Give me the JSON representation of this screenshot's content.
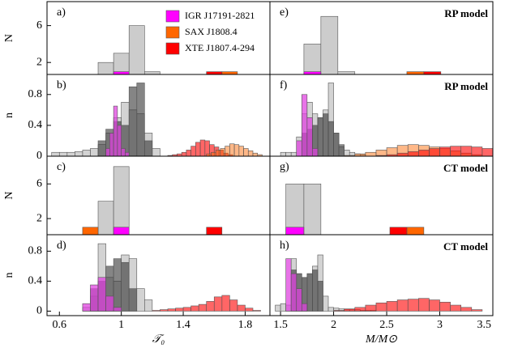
{
  "chart_data": [
    {
      "type": "histogram",
      "label": "a)",
      "ylabel": "N",
      "xlim": [
        0.52,
        1.96
      ],
      "ylim": [
        0.7,
        8.6
      ],
      "yticks": [
        2,
        6
      ],
      "series": [
        {
          "color": "#cccccc",
          "bins": [
            0.85,
            0.95,
            1.05,
            1.15,
            1.25
          ],
          "values": [
            2,
            3,
            6,
            1
          ]
        },
        {
          "name": "IGR J17191-2821",
          "color": "#ff00ff",
          "bins": [
            0.95,
            1.05
          ],
          "values": [
            1
          ]
        },
        {
          "name": "SAX J1808.4",
          "color": "#ff6600",
          "bins": [
            1.65,
            1.75
          ],
          "values": [
            1
          ]
        },
        {
          "name": "XTE J1807.4-294",
          "color": "#ff0000",
          "bins": [
            1.55,
            1.65
          ],
          "values": [
            1
          ]
        }
      ]
    },
    {
      "type": "histogram",
      "label": "b)",
      "ylabel": "n",
      "xlim": [
        0.52,
        1.96
      ],
      "ylim": [
        0,
        1.06
      ],
      "yticks": [
        0,
        0.4,
        0.8
      ],
      "series": [
        {
          "color": "#c8c8c8cc",
          "bins": [
            0.55,
            0.6,
            0.65,
            0.7,
            0.75,
            0.8,
            0.85,
            0.9,
            0.95,
            1.0,
            1.05,
            1.1,
            1.15,
            1.2,
            1.25
          ],
          "values": [
            0.05,
            0.05,
            0.05,
            0.06,
            0.08,
            0.1,
            0.15,
            0.3,
            0.5,
            0.7,
            0.6,
            0.55,
            0.3,
            0.1
          ]
        },
        {
          "color": "#33333399",
          "bins": [
            0.85,
            0.9,
            0.95,
            1.0,
            1.05,
            1.1,
            1.15,
            1.2
          ],
          "values": [
            0.2,
            0.35,
            0.45,
            0.4,
            0.9,
            0.95,
            0.2
          ]
        },
        {
          "color": "#e040e0bb",
          "bins": [
            0.9,
            0.925,
            0.95,
            0.975,
            1.0,
            1.025,
            1.05
          ],
          "values": [
            0.1,
            0.3,
            0.65,
            0.4,
            0.1,
            0.05
          ]
        },
        {
          "color": "#ff000099",
          "bins": [
            1.3,
            1.33,
            1.36,
            1.39,
            1.42,
            1.45,
            1.48,
            1.51,
            1.54,
            1.57,
            1.6,
            1.63,
            1.66,
            1.69,
            1.72
          ],
          "values": [
            0.01,
            0.02,
            0.03,
            0.05,
            0.08,
            0.13,
            0.18,
            0.21,
            0.2,
            0.15,
            0.12,
            0.08,
            0.04,
            0.02
          ]
        },
        {
          "color": "#ff660077",
          "bins": [
            1.55,
            1.58,
            1.61,
            1.64,
            1.67,
            1.7,
            1.73,
            1.76,
            1.79,
            1.82,
            1.85,
            1.88,
            1.91
          ],
          "values": [
            0.03,
            0.05,
            0.08,
            0.1,
            0.13,
            0.16,
            0.15,
            0.13,
            0.1,
            0.07,
            0.04,
            0.02
          ]
        }
      ]
    },
    {
      "type": "histogram",
      "label": "c)",
      "ylabel": "N",
      "xlim": [
        0.52,
        1.96
      ],
      "ylim": [
        0.14,
        9.2
      ],
      "yticks": [
        2,
        6
      ],
      "series": [
        {
          "color": "#cccccc",
          "bins": [
            0.85,
            0.95,
            1.05
          ],
          "values": [
            4,
            8
          ]
        },
        {
          "color": "#ff00ff",
          "bins": [
            0.95,
            1.05
          ],
          "values": [
            1
          ]
        },
        {
          "color": "#ff6600",
          "bins": [
            0.75,
            0.85
          ],
          "values": [
            1
          ]
        },
        {
          "color": "#ff0000",
          "bins": [
            1.55,
            1.65
          ],
          "values": [
            1
          ]
        }
      ]
    },
    {
      "type": "histogram",
      "label": "d)",
      "ylabel": "n",
      "xlabel": "𝒯₀",
      "xlim": [
        0.52,
        1.96
      ],
      "ylim": [
        -0.06,
        1.02
      ],
      "yticks": [
        0,
        0.4,
        0.8
      ],
      "xticks": [
        0.6,
        1,
        1.4,
        1.8
      ],
      "series": [
        {
          "color": "#c8c8c8cc",
          "bins": [
            0.75,
            0.8,
            0.85,
            0.9,
            0.95,
            1.0,
            1.05,
            1.1,
            1.15,
            1.2
          ],
          "values": [
            0.05,
            0.2,
            0.9,
            0.45,
            0.4,
            0.75,
            0.7,
            0.3,
            0.15
          ]
        },
        {
          "color": "#33333399",
          "bins": [
            0.8,
            0.85,
            0.9,
            0.95,
            1.0,
            1.05,
            1.1
          ],
          "values": [
            0.3,
            0.4,
            0.6,
            0.7,
            0.65,
            0.3
          ]
        },
        {
          "color": "#e040e0bb",
          "bins": [
            0.75,
            0.8,
            0.85,
            0.9,
            0.95,
            1.0
          ],
          "values": [
            0.1,
            0.35,
            0.45,
            0.2,
            0.05
          ]
        },
        {
          "color": "#ff000099",
          "bins": [
            1.2,
            1.25,
            1.3,
            1.35,
            1.4,
            1.45,
            1.5,
            1.55,
            1.6,
            1.65,
            1.7,
            1.75,
            1.8,
            1.85,
            1.9
          ],
          "values": [
            0.01,
            0.02,
            0.03,
            0.04,
            0.05,
            0.07,
            0.09,
            0.13,
            0.19,
            0.21,
            0.15,
            0.08,
            0.04,
            0.01
          ]
        }
      ]
    },
    {
      "type": "histogram",
      "label": "e)",
      "model": "RP model",
      "xlim": [
        1.4,
        3.5
      ],
      "ylim": [
        0.7,
        8.6
      ],
      "series": [
        {
          "color": "#cccccc",
          "bins": [
            1.72,
            1.88,
            2.04,
            2.2
          ],
          "values": [
            4,
            7,
            1
          ]
        },
        {
          "color": "#ff00ff",
          "bins": [
            1.72,
            1.88
          ],
          "values": [
            1
          ]
        },
        {
          "color": "#ff6600",
          "bins": [
            2.69,
            2.85
          ],
          "values": [
            1
          ]
        },
        {
          "color": "#ff0000",
          "bins": [
            2.85,
            3.01
          ],
          "values": [
            1
          ]
        }
      ]
    },
    {
      "type": "histogram",
      "label": "f)",
      "model": "RP model",
      "xlim": [
        1.4,
        3.5
      ],
      "ylim": [
        0,
        1.06
      ],
      "series": [
        {
          "color": "#c8c8c8cc",
          "bins": [
            1.5,
            1.55,
            1.6,
            1.65,
            1.7,
            1.75,
            1.8,
            1.85,
            1.9,
            1.95,
            2.0,
            2.05,
            2.1,
            2.15,
            2.2,
            2.25,
            2.3
          ],
          "values": [
            0.05,
            0.05,
            0.05,
            0.25,
            0.55,
            0.7,
            0.55,
            0.5,
            0.6,
            0.95,
            0.3,
            0.12,
            0.08,
            0.05,
            0.03,
            0.02
          ]
        },
        {
          "color": "#33333399",
          "bins": [
            1.7,
            1.75,
            1.8,
            1.85,
            1.9,
            1.95,
            2.0,
            2.05,
            2.1
          ],
          "values": [
            0.3,
            0.35,
            0.4,
            0.5,
            0.55,
            0.45,
            0.3,
            0.15
          ]
        },
        {
          "color": "#e040e0bb",
          "bins": [
            1.65,
            1.7,
            1.75,
            1.8,
            1.85
          ],
          "values": [
            0.2,
            0.8,
            0.5,
            0.1
          ]
        },
        {
          "color": "#ff660077",
          "bins": [
            2.1,
            2.2,
            2.3,
            2.4,
            2.5,
            2.6,
            2.7,
            2.8,
            2.9,
            3.0,
            3.1,
            3.2,
            3.3,
            3.4
          ],
          "values": [
            0.01,
            0.03,
            0.05,
            0.08,
            0.11,
            0.14,
            0.15,
            0.14,
            0.12,
            0.1,
            0.07,
            0.04,
            0.02
          ]
        },
        {
          "color": "#ff000099",
          "bins": [
            2.4,
            2.5,
            2.6,
            2.7,
            2.8,
            2.9,
            3.0,
            3.1,
            3.2,
            3.3,
            3.4,
            3.5
          ],
          "values": [
            0.01,
            0.02,
            0.04,
            0.06,
            0.08,
            0.1,
            0.12,
            0.13,
            0.13,
            0.12,
            0.1
          ]
        }
      ]
    },
    {
      "type": "histogram",
      "label": "g)",
      "model": "CT model",
      "xlim": [
        1.4,
        3.5
      ],
      "ylim": [
        0.14,
        9.2
      ],
      "series": [
        {
          "color": "#cccccc",
          "bins": [
            1.55,
            1.72,
            1.88
          ],
          "values": [
            6,
            6
          ]
        },
        {
          "color": "#ff00ff",
          "bins": [
            1.55,
            1.72
          ],
          "values": [
            1
          ]
        },
        {
          "color": "#ff6600",
          "bins": [
            2.69,
            2.85
          ],
          "values": [
            1
          ]
        },
        {
          "color": "#ff0000",
          "bins": [
            2.53,
            2.69
          ],
          "values": [
            1
          ]
        }
      ]
    },
    {
      "type": "histogram",
      "label": "h)",
      "model": "CT model",
      "xlabel": "M/M⊙",
      "xlim": [
        1.4,
        3.5
      ],
      "ylim": [
        -0.06,
        1.02
      ],
      "xticks": [
        1.5,
        2,
        2.5,
        3,
        3.5
      ],
      "series": [
        {
          "color": "#c8c8c8cc",
          "bins": [
            1.45,
            1.5,
            1.55,
            1.6,
            1.65,
            1.7,
            1.75,
            1.8,
            1.85,
            1.9,
            1.95,
            2.0,
            2.05,
            2.1,
            2.15,
            2.2,
            2.25,
            2.3,
            2.35,
            2.4
          ],
          "values": [
            0.08,
            0.1,
            0.08,
            0.7,
            0.5,
            0.45,
            0.5,
            0.6,
            0.75,
            0.2,
            0.05,
            0.04,
            0.03,
            0.02,
            0.02,
            0.02,
            0.01,
            0.01,
            0.01
          ]
        },
        {
          "color": "#33333399",
          "bins": [
            1.6,
            1.65,
            1.7,
            1.75,
            1.8,
            1.85,
            1.9
          ],
          "values": [
            0.55,
            0.5,
            0.45,
            0.5,
            0.55,
            0.4
          ]
        },
        {
          "color": "#e040e0bb",
          "bins": [
            1.55,
            1.6,
            1.65,
            1.7,
            1.75
          ],
          "values": [
            0.7,
            0.5,
            0.3,
            0.1
          ]
        },
        {
          "color": "#ff000099",
          "bins": [
            2.0,
            2.1,
            2.2,
            2.3,
            2.4,
            2.5,
            2.6,
            2.7,
            2.8,
            2.9,
            3.0,
            3.1,
            3.2,
            3.3,
            3.4
          ],
          "values": [
            0.01,
            0.03,
            0.05,
            0.08,
            0.11,
            0.13,
            0.15,
            0.16,
            0.17,
            0.15,
            0.12,
            0.08,
            0.05,
            0.02
          ]
        }
      ]
    }
  ]
}
